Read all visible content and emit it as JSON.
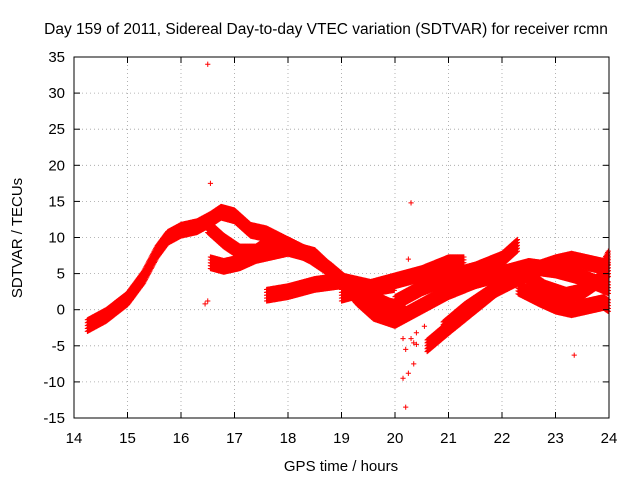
{
  "colors": {
    "series": "#ff0000",
    "grid": "#a0a0a0",
    "axis": "#000000",
    "background": "#ffffff"
  },
  "chart_data": {
    "type": "scatter",
    "title": "Day 159 of 2011, Sidereal Day-to-day VTEC variation (SDTVAR) for receiver rcmn",
    "xlabel": "GPS time / hours",
    "ylabel": "SDTVAR / TECUs",
    "xlim": [
      14,
      24
    ],
    "ylim": [
      -15,
      35
    ],
    "x_ticks": [
      14,
      15,
      16,
      17,
      18,
      19,
      20,
      21,
      22,
      23,
      24
    ],
    "y_ticks": [
      -15,
      -10,
      -5,
      0,
      5,
      10,
      15,
      20,
      25,
      30,
      35
    ],
    "grid": true,
    "marker": "+",
    "series": [
      {
        "name": "SDTVAR",
        "marker": "+",
        "bands": [
          {
            "x": [
              14.25,
              14.6,
              15.0,
              15.3,
              15.55,
              15.75,
              16.0,
              16.3,
              16.55,
              16.75,
              17.0,
              17.3,
              17.6,
              18.0,
              18.4,
              18.8,
              19.2,
              19.6,
              19.9,
              20.2
            ],
            "y": [
              -2.2,
              -0.8,
              1.5,
              4.5,
              8.0,
              10.0,
              11.0,
              11.5,
              12.5,
              13.5,
              13.0,
              11.0,
              10.5,
              9.0,
              7.5,
              5.5,
              3.0,
              1.5,
              0.5,
              0.0
            ],
            "thickness": 0.8
          },
          {
            "x": [
              16.55,
              16.8,
              17.1,
              17.4,
              17.7,
              18.0,
              18.5,
              19.0,
              19.3,
              19.6,
              20.0,
              20.5,
              21.0,
              21.5,
              22.0,
              22.5,
              23.0,
              23.5,
              24.0
            ],
            "y": [
              6.5,
              6.0,
              6.5,
              7.5,
              8.0,
              8.5,
              7.5,
              4.0,
              1.5,
              -0.5,
              -1.5,
              0.5,
              2.5,
              4.0,
              5.0,
              6.0,
              5.5,
              4.5,
              3.0
            ],
            "thickness": 0.8
          },
          {
            "x": [
              16.5,
              16.8,
              17.1,
              17.4,
              17.7,
              18.0,
              18.4
            ],
            "y": [
              11.5,
              9.5,
              8.0,
              8.0,
              9.5,
              9.0,
              7.5
            ],
            "thickness": 0.8
          },
          {
            "x": [
              17.6,
              18.0,
              18.5,
              19.0,
              19.3,
              19.6,
              20.0
            ],
            "y": [
              2.0,
              2.5,
              3.5,
              4.0,
              3.5,
              3.0,
              3.5
            ],
            "thickness": 0.8
          },
          {
            "x": [
              19.0,
              19.5,
              20.0,
              20.5,
              21.0,
              21.3
            ],
            "y": [
              2.0,
              3.0,
              4.0,
              5.0,
              6.5,
              6.5
            ],
            "thickness": 0.8
          },
          {
            "x": [
              20.0,
              20.5,
              21.0,
              21.5,
              22.0,
              22.3
            ],
            "y": [
              1.0,
              3.0,
              4.5,
              5.5,
              7.0,
              9.0
            ],
            "thickness": 0.8
          },
          {
            "x": [
              20.6,
              21.0,
              21.5,
              22.0,
              22.5
            ],
            "y": [
              -5.0,
              -2.5,
              0.5,
              3.5,
              6.0
            ],
            "thickness": 0.8
          },
          {
            "x": [
              20.9,
              21.3,
              21.8,
              22.2,
              22.6,
              23.0
            ],
            "y": [
              -2.5,
              0.0,
              2.5,
              4.0,
              5.5,
              6.5
            ],
            "thickness": 0.8
          },
          {
            "x": [
              22.3,
              22.7,
              23.0,
              23.3,
              23.6,
              23.9,
              24.0
            ],
            "y": [
              3.0,
              1.5,
              0.5,
              0.0,
              0.5,
              1.0,
              0.5
            ],
            "thickness": 0.8
          },
          {
            "x": [
              23.0,
              23.3,
              23.6,
              23.9,
              24.0
            ],
            "y": [
              6.5,
              7.0,
              6.5,
              6.0,
              7.5
            ],
            "thickness": 0.8
          },
          {
            "x": [
              22.4,
              22.8,
              23.2,
              23.5,
              23.8,
              24.0
            ],
            "y": [
              5.0,
              3.0,
              2.0,
              2.5,
              4.0,
              5.5
            ],
            "thickness": 0.8
          }
        ],
        "points": [
          [
            16.5,
            34.0
          ],
          [
            16.55,
            17.5
          ],
          [
            16.5,
            1.2
          ],
          [
            16.45,
            0.8
          ],
          [
            20.3,
            14.8
          ],
          [
            20.25,
            7.0
          ],
          [
            20.35,
            5.0
          ],
          [
            20.4,
            -3.2
          ],
          [
            20.3,
            -4.0
          ],
          [
            20.35,
            -4.6
          ],
          [
            20.4,
            -4.8
          ],
          [
            20.15,
            -4.0
          ],
          [
            20.2,
            -5.5
          ],
          [
            20.35,
            -7.5
          ],
          [
            20.25,
            -8.8
          ],
          [
            20.15,
            -9.5
          ],
          [
            20.2,
            -13.5
          ],
          [
            20.55,
            -2.3
          ],
          [
            23.35,
            -6.3
          ]
        ]
      }
    ]
  }
}
